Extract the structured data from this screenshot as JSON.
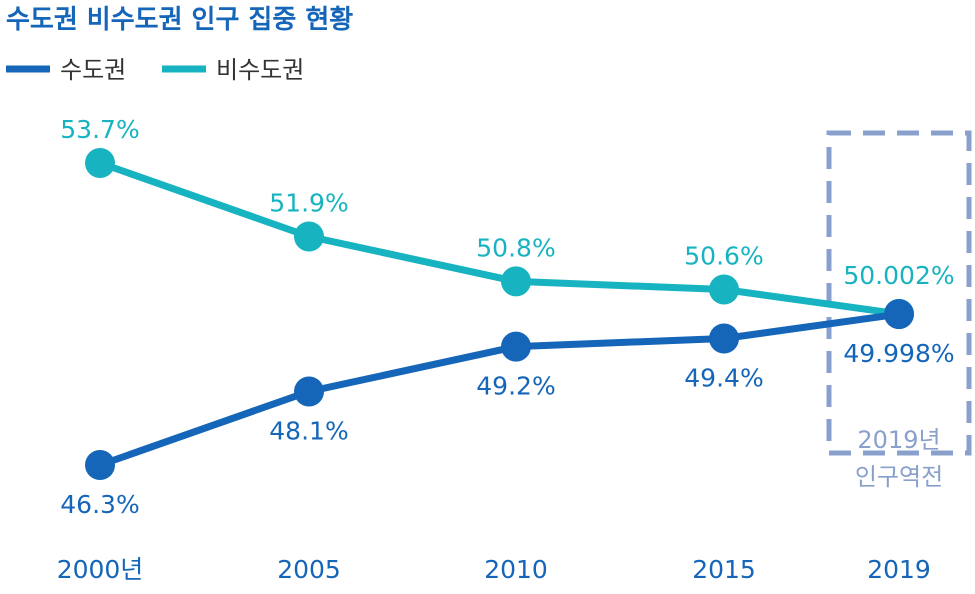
{
  "chart_data": {
    "type": "line",
    "title": "수도권 비수도권 인구 집중 현황",
    "categories": [
      "2000년",
      "2005",
      "2010",
      "2015",
      "2019"
    ],
    "series": [
      {
        "name": "수도권",
        "color": "#1565b8",
        "values": [
          46.3,
          48.1,
          49.2,
          49.4,
          49.998
        ],
        "labels": [
          "46.3%",
          "48.1%",
          "49.2%",
          "49.4%",
          "49.998%"
        ]
      },
      {
        "name": "비수도권",
        "color": "#17b3c1",
        "values": [
          53.7,
          51.9,
          50.8,
          50.6,
          50.002
        ],
        "labels": [
          "53.7%",
          "51.9%",
          "50.8%",
          "50.6%",
          "50.002%"
        ]
      }
    ],
    "legend_position": "top-left",
    "grid": false,
    "annotation": {
      "category": "2019",
      "lines": [
        "2019년",
        "인구역전"
      ],
      "color": "#8aa0cc"
    }
  }
}
